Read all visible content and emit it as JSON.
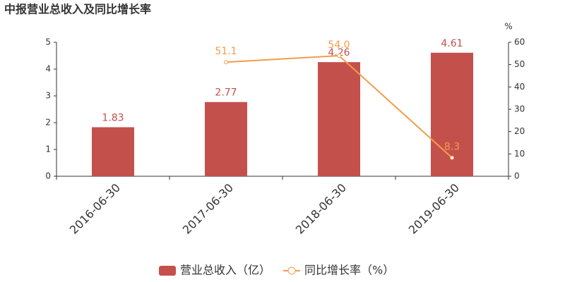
{
  "chart_data": {
    "type": "bar",
    "title": "中报营业总收入及同比增长率",
    "categories": [
      "2016-06-30",
      "2017-06-30",
      "2018-06-30",
      "2019-06-30"
    ],
    "series": [
      {
        "name": "营业总收入（亿）",
        "color": "#c4504c",
        "values": [
          1.83,
          2.77,
          4.26,
          4.61
        ]
      },
      {
        "name": "同比增长率（%）",
        "color": "#f39c4a",
        "type": "line",
        "axis": "y2",
        "values": [
          null,
          51.1,
          54.0,
          8.3
        ],
        "value_labels": [
          null,
          "51.1",
          "54.0",
          "8.3"
        ]
      }
    ],
    "ylim": [
      0,
      5
    ],
    "yticks": [
      0,
      1,
      2,
      3,
      4,
      5
    ],
    "y2lim": [
      0,
      60
    ],
    "y2ticks": [
      0,
      10,
      20,
      30,
      40,
      50,
      60
    ],
    "y2label": "%"
  }
}
